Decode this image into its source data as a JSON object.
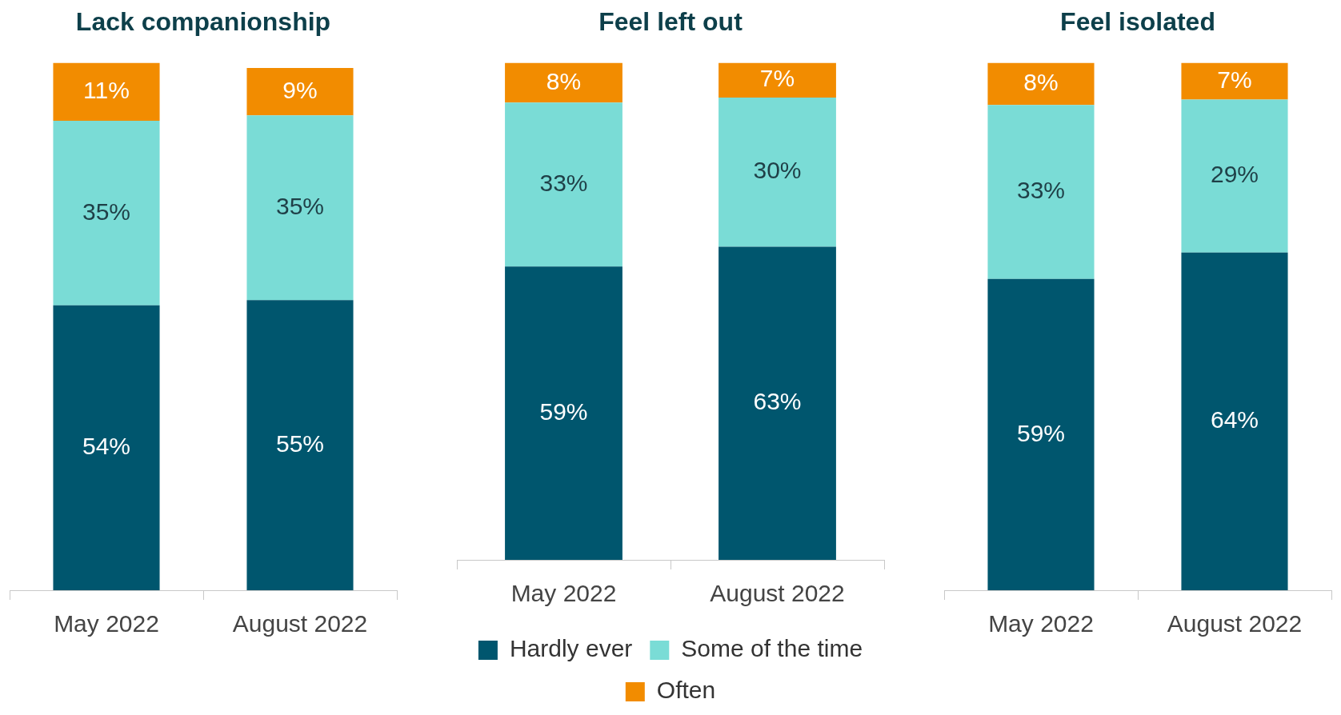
{
  "chart_data": [
    {
      "type": "bar",
      "title": "Lack companionship",
      "categories": [
        "May 2022",
        "August 2022"
      ],
      "stacked": true,
      "legend": false,
      "series": [
        {
          "color": "#00566e",
          "values": [
            54,
            55
          ],
          "value_labels": [
            "54%",
            "55%"
          ]
        },
        {
          "color": "#7adcd6",
          "values": [
            35,
            35
          ],
          "value_labels": [
            "35%",
            "35%"
          ]
        },
        {
          "color": "#f28c00",
          "values": [
            11,
            9
          ],
          "value_labels": [
            "11%",
            "9%"
          ]
        }
      ]
    },
    {
      "type": "bar",
      "title": "Feel left out",
      "categories": [
        "May 2022",
        "August 2022"
      ],
      "stacked": true,
      "legend": "bottom",
      "series": [
        {
          "name": "Hardly ever",
          "color": "#00566e",
          "values": [
            59,
            63
          ],
          "value_labels": [
            "59%",
            "63%"
          ]
        },
        {
          "name": "Some of the time",
          "color": "#7adcd6",
          "values": [
            33,
            30
          ],
          "value_labels": [
            "33%",
            "30%"
          ]
        },
        {
          "name": "Often",
          "color": "#f28c00",
          "values": [
            8,
            7
          ],
          "value_labels": [
            "8%",
            "7%"
          ]
        }
      ]
    },
    {
      "type": "bar",
      "title": "Feel isolated",
      "categories": [
        "May 2022",
        "August 2022"
      ],
      "stacked": true,
      "legend": false,
      "series": [
        {
          "color": "#00566e",
          "values": [
            59,
            64
          ],
          "value_labels": [
            "59%",
            "64%"
          ]
        },
        {
          "color": "#7adcd6",
          "values": [
            33,
            29
          ],
          "value_labels": [
            "33%",
            "29%"
          ]
        },
        {
          "color": "#f28c00",
          "values": [
            8,
            7
          ],
          "value_labels": [
            "8%",
            "7%"
          ]
        }
      ]
    }
  ]
}
